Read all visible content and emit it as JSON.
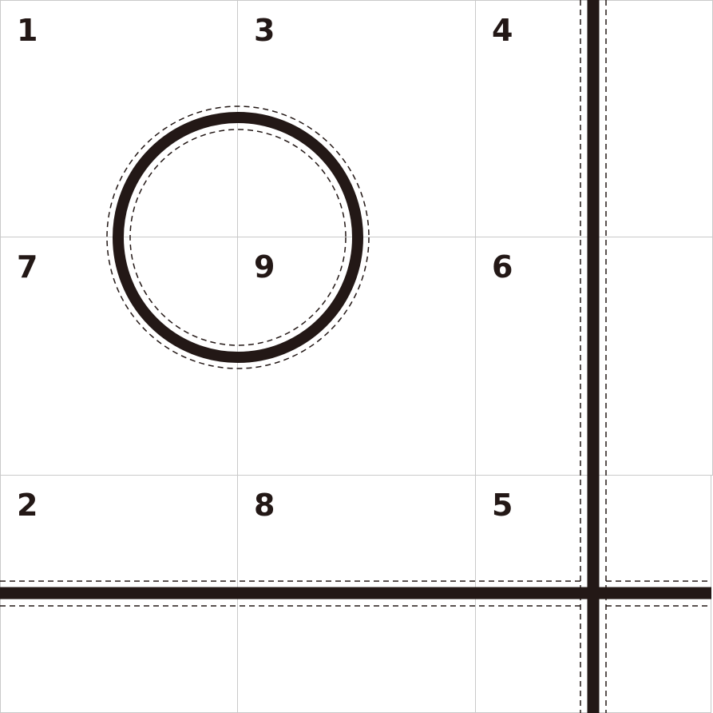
{
  "puzzle": {
    "tiles": [
      {
        "number": "1",
        "row": 0,
        "col": 0
      },
      {
        "number": "3",
        "row": 0,
        "col": 1
      },
      {
        "number": "4",
        "row": 0,
        "col": 2
      },
      {
        "number": "7",
        "row": 1,
        "col": 0
      },
      {
        "number": "9",
        "row": 1,
        "col": 1
      },
      {
        "number": "6",
        "row": 1,
        "col": 2
      },
      {
        "number": "2",
        "row": 2,
        "col": 0
      },
      {
        "number": "8",
        "row": 2,
        "col": 1
      },
      {
        "number": "5",
        "row": 2,
        "col": 2
      }
    ],
    "colors": {
      "ink": "#231816",
      "tile_border": "#c9c9c9",
      "background": "#ffffff"
    }
  }
}
